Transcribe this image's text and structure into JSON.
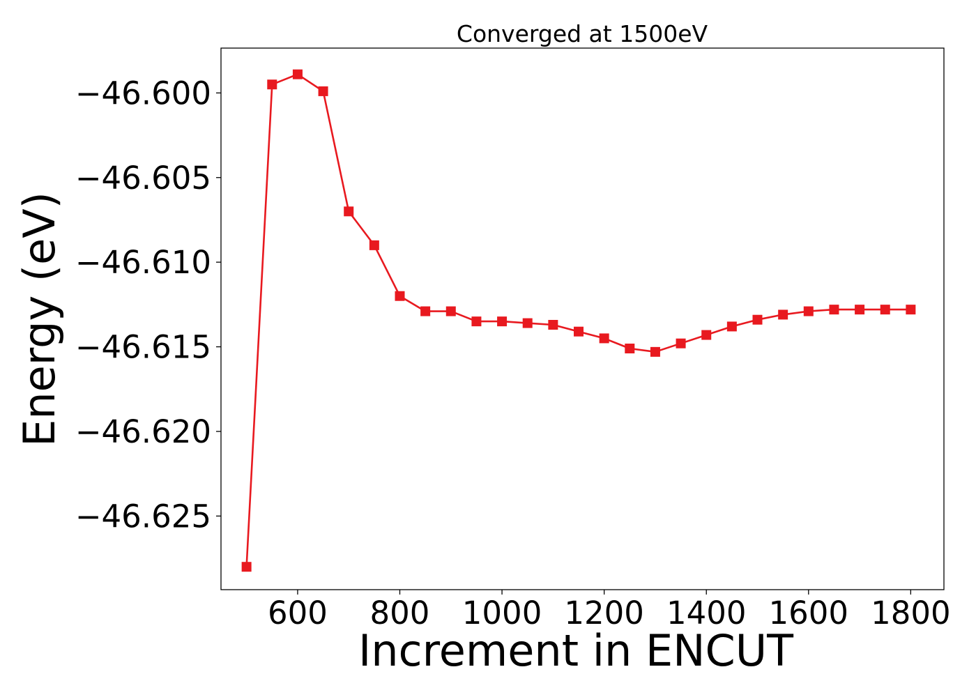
{
  "chart_data": {
    "type": "line",
    "title": "Converged at 1500eV",
    "xlabel": "Increment in ENCUT",
    "ylabel": "Energy (eV)",
    "x": [
      500,
      550,
      600,
      650,
      700,
      750,
      800,
      850,
      900,
      950,
      1000,
      1050,
      1100,
      1150,
      1200,
      1250,
      1300,
      1350,
      1400,
      1450,
      1500,
      1550,
      1600,
      1650,
      1700,
      1750,
      1800
    ],
    "series": [
      {
        "values": [
          -46.628,
          -46.5995,
          -46.5989,
          -46.5999,
          -46.607,
          -46.609,
          -46.612,
          -46.6129,
          -46.6129,
          -46.6135,
          -46.6135,
          -46.6136,
          -46.6137,
          -46.6141,
          -46.6145,
          -46.6151,
          -46.6153,
          -46.6148,
          -46.6143,
          -46.6138,
          -46.6134,
          -46.6131,
          -46.6129,
          -46.6128,
          -46.6128,
          -46.6128,
          -46.6128
        ],
        "color": "#e8191f",
        "marker": "square"
      }
    ],
    "xlim": [
      450,
      1865
    ],
    "ylim": [
      -46.62935,
      -46.59735
    ],
    "xticks": [
      600,
      800,
      1000,
      1200,
      1400,
      1600,
      1800
    ],
    "xtick_labels": [
      "600",
      "800",
      "1000",
      "1200",
      "1400",
      "1600",
      "1800"
    ],
    "yticks": [
      -46.6,
      -46.605,
      -46.61,
      -46.615,
      -46.62,
      -46.625
    ],
    "ytick_labels": [
      "−46.600",
      "−46.605",
      "−46.610",
      "−46.615",
      "−46.620",
      "−46.625"
    ],
    "grid": false,
    "legend": false
  }
}
